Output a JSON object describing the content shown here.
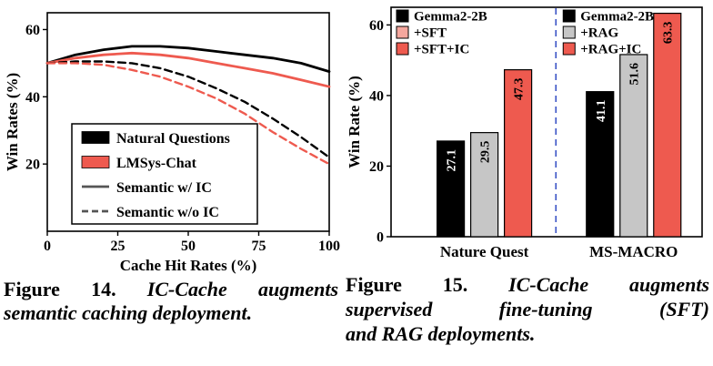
{
  "figure14": {
    "caption_label": "Figure 14.",
    "caption_lines": [
      "IC-Cache augments",
      "semantic caching deployment."
    ]
  },
  "figure15": {
    "caption_label": "Figure 15.",
    "caption_lines": [
      "IC-Cache augments",
      "supervised fine-tuning (SFT)",
      "and RAG deployments."
    ]
  },
  "chart_data": [
    {
      "type": "line",
      "title": "",
      "xlabel": "Cache Hit Rates (%)",
      "ylabel": "Win Rates (%)",
      "xlim": [
        0,
        100
      ],
      "ylim": [
        0,
        65
      ],
      "xticks": [
        0,
        25,
        50,
        75,
        100
      ],
      "yticks": [
        20,
        40,
        60
      ],
      "grid": false,
      "x": [
        0,
        10,
        20,
        30,
        40,
        50,
        60,
        70,
        80,
        90,
        100
      ],
      "series": [
        {
          "name": "Natural Questions - Semantic w/ IC",
          "color": "#000000",
          "dash": "solid",
          "values": [
            50,
            52.5,
            54,
            55,
            55,
            54.5,
            53.5,
            52.5,
            51.5,
            50,
            47.5
          ]
        },
        {
          "name": "LMSys-Chat - Semantic w/ IC",
          "color": "#ee5a4f",
          "dash": "solid",
          "values": [
            50,
            51.5,
            52.5,
            53,
            52.5,
            51.5,
            50,
            48.5,
            47,
            45,
            43
          ]
        },
        {
          "name": "Natural Questions - Semantic w/o IC",
          "color": "#000000",
          "dash": "dashed",
          "values": [
            50,
            50.5,
            50.5,
            50,
            48.5,
            46,
            42.5,
            38.5,
            33.5,
            28,
            22
          ]
        },
        {
          "name": "LMSys-Chat - Semantic w/o IC",
          "color": "#ee5a4f",
          "dash": "dashed",
          "values": [
            50,
            50,
            49.5,
            48,
            46,
            43,
            39.5,
            35,
            29.5,
            24.5,
            20
          ]
        }
      ],
      "legend": {
        "position": "lower-left-inside",
        "entries": [
          {
            "label": "Natural Questions",
            "swatch": "patch",
            "color": "#000000"
          },
          {
            "label": "LMSys-Chat",
            "swatch": "patch",
            "color": "#ee5a4f"
          },
          {
            "label": "Semantic w/ IC",
            "swatch": "line",
            "dash": "solid",
            "color": "#555555"
          },
          {
            "label": "Semantic w/o IC",
            "swatch": "line",
            "dash": "dashed",
            "color": "#555555"
          }
        ]
      }
    },
    {
      "type": "bar",
      "title": "",
      "xlabel": "",
      "ylabel": "Win Rate (%)",
      "ylim": [
        0,
        65
      ],
      "yticks": [
        0,
        20,
        40,
        60
      ],
      "grid": false,
      "categories": [
        "Nature Quest",
        "MS-MACRO"
      ],
      "groups": [
        {
          "label": "Nature Quest",
          "bars": [
            {
              "name": "Gemma2-2B",
              "value": 27.1,
              "color": "#000000",
              "label_color": "#ffffff"
            },
            {
              "name": "+SFT",
              "value": 29.5,
              "color": "#c6c6c6",
              "label_color": "#000000"
            },
            {
              "name": "+SFT+IC",
              "value": 47.3,
              "color": "#ee5a4f",
              "label_color": "#000000"
            }
          ]
        },
        {
          "label": "MS-MACRO",
          "bars": [
            {
              "name": "Gemma2-2B",
              "value": 41.1,
              "color": "#000000",
              "label_color": "#ffffff"
            },
            {
              "name": "+RAG",
              "value": 51.6,
              "color": "#c6c6c6",
              "label_color": "#000000"
            },
            {
              "name": "+RAG+IC",
              "value": 63.3,
              "color": "#ee5a4f",
              "label_color": "#000000"
            }
          ]
        }
      ],
      "separator": {
        "style": "dashed",
        "color": "#3a53c5"
      },
      "legends": [
        {
          "entries": [
            {
              "label": "Gemma2-2B",
              "color": "#000000"
            },
            {
              "label": "+SFT",
              "color": "#f5a79e"
            },
            {
              "label": "+SFT+IC",
              "color": "#ee5a4f"
            }
          ]
        },
        {
          "entries": [
            {
              "label": "Gemma2-2B",
              "color": "#000000"
            },
            {
              "label": "+RAG",
              "color": "#c6c6c6"
            },
            {
              "label": "+RAG+IC",
              "color": "#ee5a4f"
            }
          ]
        }
      ]
    }
  ]
}
